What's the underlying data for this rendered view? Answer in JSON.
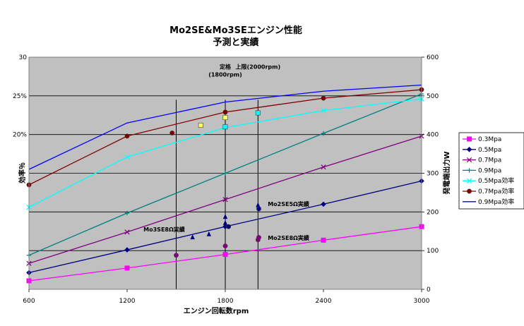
{
  "chart_data": {
    "type": "line",
    "title": [
      "Mo2SE&Mo3SEエンジン性能",
      "予測と実績"
    ],
    "xlabel": "エンジン回転数rpm",
    "ylabel_left": "効率％",
    "ylabel_right": "発電端出力W",
    "xlim": [
      600,
      3000
    ],
    "ylim_left": [
      0,
      30
    ],
    "ylim_right": [
      0,
      600
    ],
    "x_ticks": [
      "600",
      "1200",
      "1800",
      "2400",
      "3000"
    ],
    "x_tick_values": [
      600,
      1200,
      1800,
      2400,
      3000
    ],
    "left_ticks": [
      "30",
      "25%",
      "20%"
    ],
    "left_tick_values": [
      30,
      25,
      20
    ],
    "right_ticks": [
      "600",
      "500",
      "400",
      "300",
      "200",
      "100",
      "0"
    ],
    "right_tick_values": [
      600,
      500,
      400,
      300,
      200,
      100,
      0
    ],
    "grid": true,
    "legend_position": "right",
    "series": [
      {
        "name": "0.3Mpa",
        "axis": "right",
        "color": "#ff00ff",
        "marker": "square",
        "x": [
          600,
          1200,
          1800,
          2400,
          3000
        ],
        "y": [
          22,
          55,
          90,
          127,
          162
        ]
      },
      {
        "name": "0.5Mpa",
        "axis": "right",
        "color": "#000080",
        "marker": "diamond",
        "x": [
          600,
          1200,
          1800,
          2400,
          3000
        ],
        "y": [
          43,
          102,
          162,
          220,
          280
        ]
      },
      {
        "name": "0.7Mpa",
        "axis": "right",
        "color": "#800080",
        "marker": "x",
        "x": [
          600,
          1200,
          1800,
          2400,
          3000
        ],
        "y": [
          67,
          148,
          232,
          316,
          396
        ]
      },
      {
        "name": "0.9Mpa",
        "axis": "right",
        "color": "#008080",
        "marker": "plus",
        "x": [
          600,
          1200,
          1800,
          2400,
          3000
        ],
        "y": [
          88,
          197,
          300,
          403,
          505
        ]
      },
      {
        "name": "0.5Mpa効率",
        "axis": "left",
        "color": "#00ffff",
        "marker": "x",
        "x": [
          600,
          1200,
          1800,
          2400,
          3000
        ],
        "y": [
          10.6,
          17.1,
          20.9,
          23.1,
          24.6
        ]
      },
      {
        "name": "0.7Mpa効率",
        "axis": "left",
        "color": "#800000",
        "marker": "circle",
        "x": [
          600,
          1200,
          1800,
          2400,
          3000
        ],
        "y": [
          13.5,
          19.8,
          22.9,
          24.7,
          25.8
        ]
      },
      {
        "name": "0.9Mpa効率",
        "axis": "left",
        "color": "#0000ff",
        "marker": "none",
        "x": [
          600,
          1200,
          1800,
          2400,
          3000
        ],
        "y": [
          15.5,
          21.5,
          24.2,
          25.6,
          26.4
        ]
      }
    ],
    "measured_points": [
      {
        "group": "Mo3SE",
        "axis": "left",
        "x": 1475,
        "y": 20.2,
        "marker": "circle",
        "color": "#800000"
      },
      {
        "group": "Mo3SE",
        "axis": "left",
        "x": 1650,
        "y": 21.2,
        "marker": "square",
        "color": "#ffff66"
      },
      {
        "group": "Mo3SE",
        "axis": "left",
        "x": 1800,
        "y": 21.0,
        "marker": "square",
        "color": "#00ffff"
      },
      {
        "group": "Mo3SE",
        "axis": "left",
        "x": 1800,
        "y": 22.2,
        "marker": "square",
        "color": "#ffff66"
      },
      {
        "group": "Mo3SE",
        "axis": "left",
        "x": 1800,
        "y": 22.9,
        "marker": "circle",
        "color": "#800000"
      },
      {
        "group": "Mo2SE",
        "axis": "left",
        "x": 2000,
        "y": 22.8,
        "marker": "square",
        "color": "#00ffff"
      },
      {
        "group": "Mo3SE",
        "axis": "right",
        "x": 1500,
        "y": 88,
        "marker": "circle",
        "color": "#800080"
      },
      {
        "group": "Mo3SE",
        "axis": "right",
        "x": 1600,
        "y": 135,
        "marker": "triangle",
        "color": "#000080"
      },
      {
        "group": "Mo3SE",
        "axis": "right",
        "x": 1700,
        "y": 143,
        "marker": "triangle",
        "color": "#000080"
      },
      {
        "group": "Mo3SE",
        "axis": "right",
        "x": 1800,
        "y": 112,
        "marker": "circle",
        "color": "#800080"
      },
      {
        "group": "Mo3SE",
        "axis": "right",
        "x": 1800,
        "y": 172,
        "marker": "triangle",
        "color": "#000080"
      },
      {
        "group": "Mo3SE",
        "axis": "right",
        "x": 1800,
        "y": 188,
        "marker": "triangle",
        "color": "#000080"
      },
      {
        "group": "Mo3SE",
        "axis": "right",
        "x": 1820,
        "y": 162,
        "marker": "circle",
        "color": "#000080"
      },
      {
        "group": "Mo2SE",
        "axis": "right",
        "x": 2000,
        "y": 128,
        "marker": "circle",
        "color": "#800080"
      },
      {
        "group": "Mo2SE",
        "axis": "right",
        "x": 2005,
        "y": 134,
        "marker": "circle",
        "color": "#800080"
      },
      {
        "group": "Mo2SE",
        "axis": "right",
        "x": 2000,
        "y": 218,
        "marker": "triangle",
        "color": "#000080"
      },
      {
        "group": "Mo2SE",
        "axis": "right",
        "x": 2005,
        "y": 208,
        "marker": "circle",
        "color": "#000080"
      }
    ],
    "vertical_lines": [
      1500,
      1800,
      2000
    ],
    "annotations": [
      {
        "text": "定格",
        "x": 1800,
        "y_right": 570
      },
      {
        "text": "(1800rpm)",
        "x": 1800,
        "y_right": 550
      },
      {
        "text": "上限(2000rpm)",
        "x": 2000,
        "y_right": 570
      },
      {
        "text": "Mo3SE8Ω実績",
        "x": 1300,
        "y_right": 150
      },
      {
        "text": "Mo2SE5Ω実績",
        "x": 2060,
        "y_right": 215
      },
      {
        "text": "Mo2SE8Ω実績",
        "x": 2060,
        "y_right": 128
      }
    ]
  }
}
